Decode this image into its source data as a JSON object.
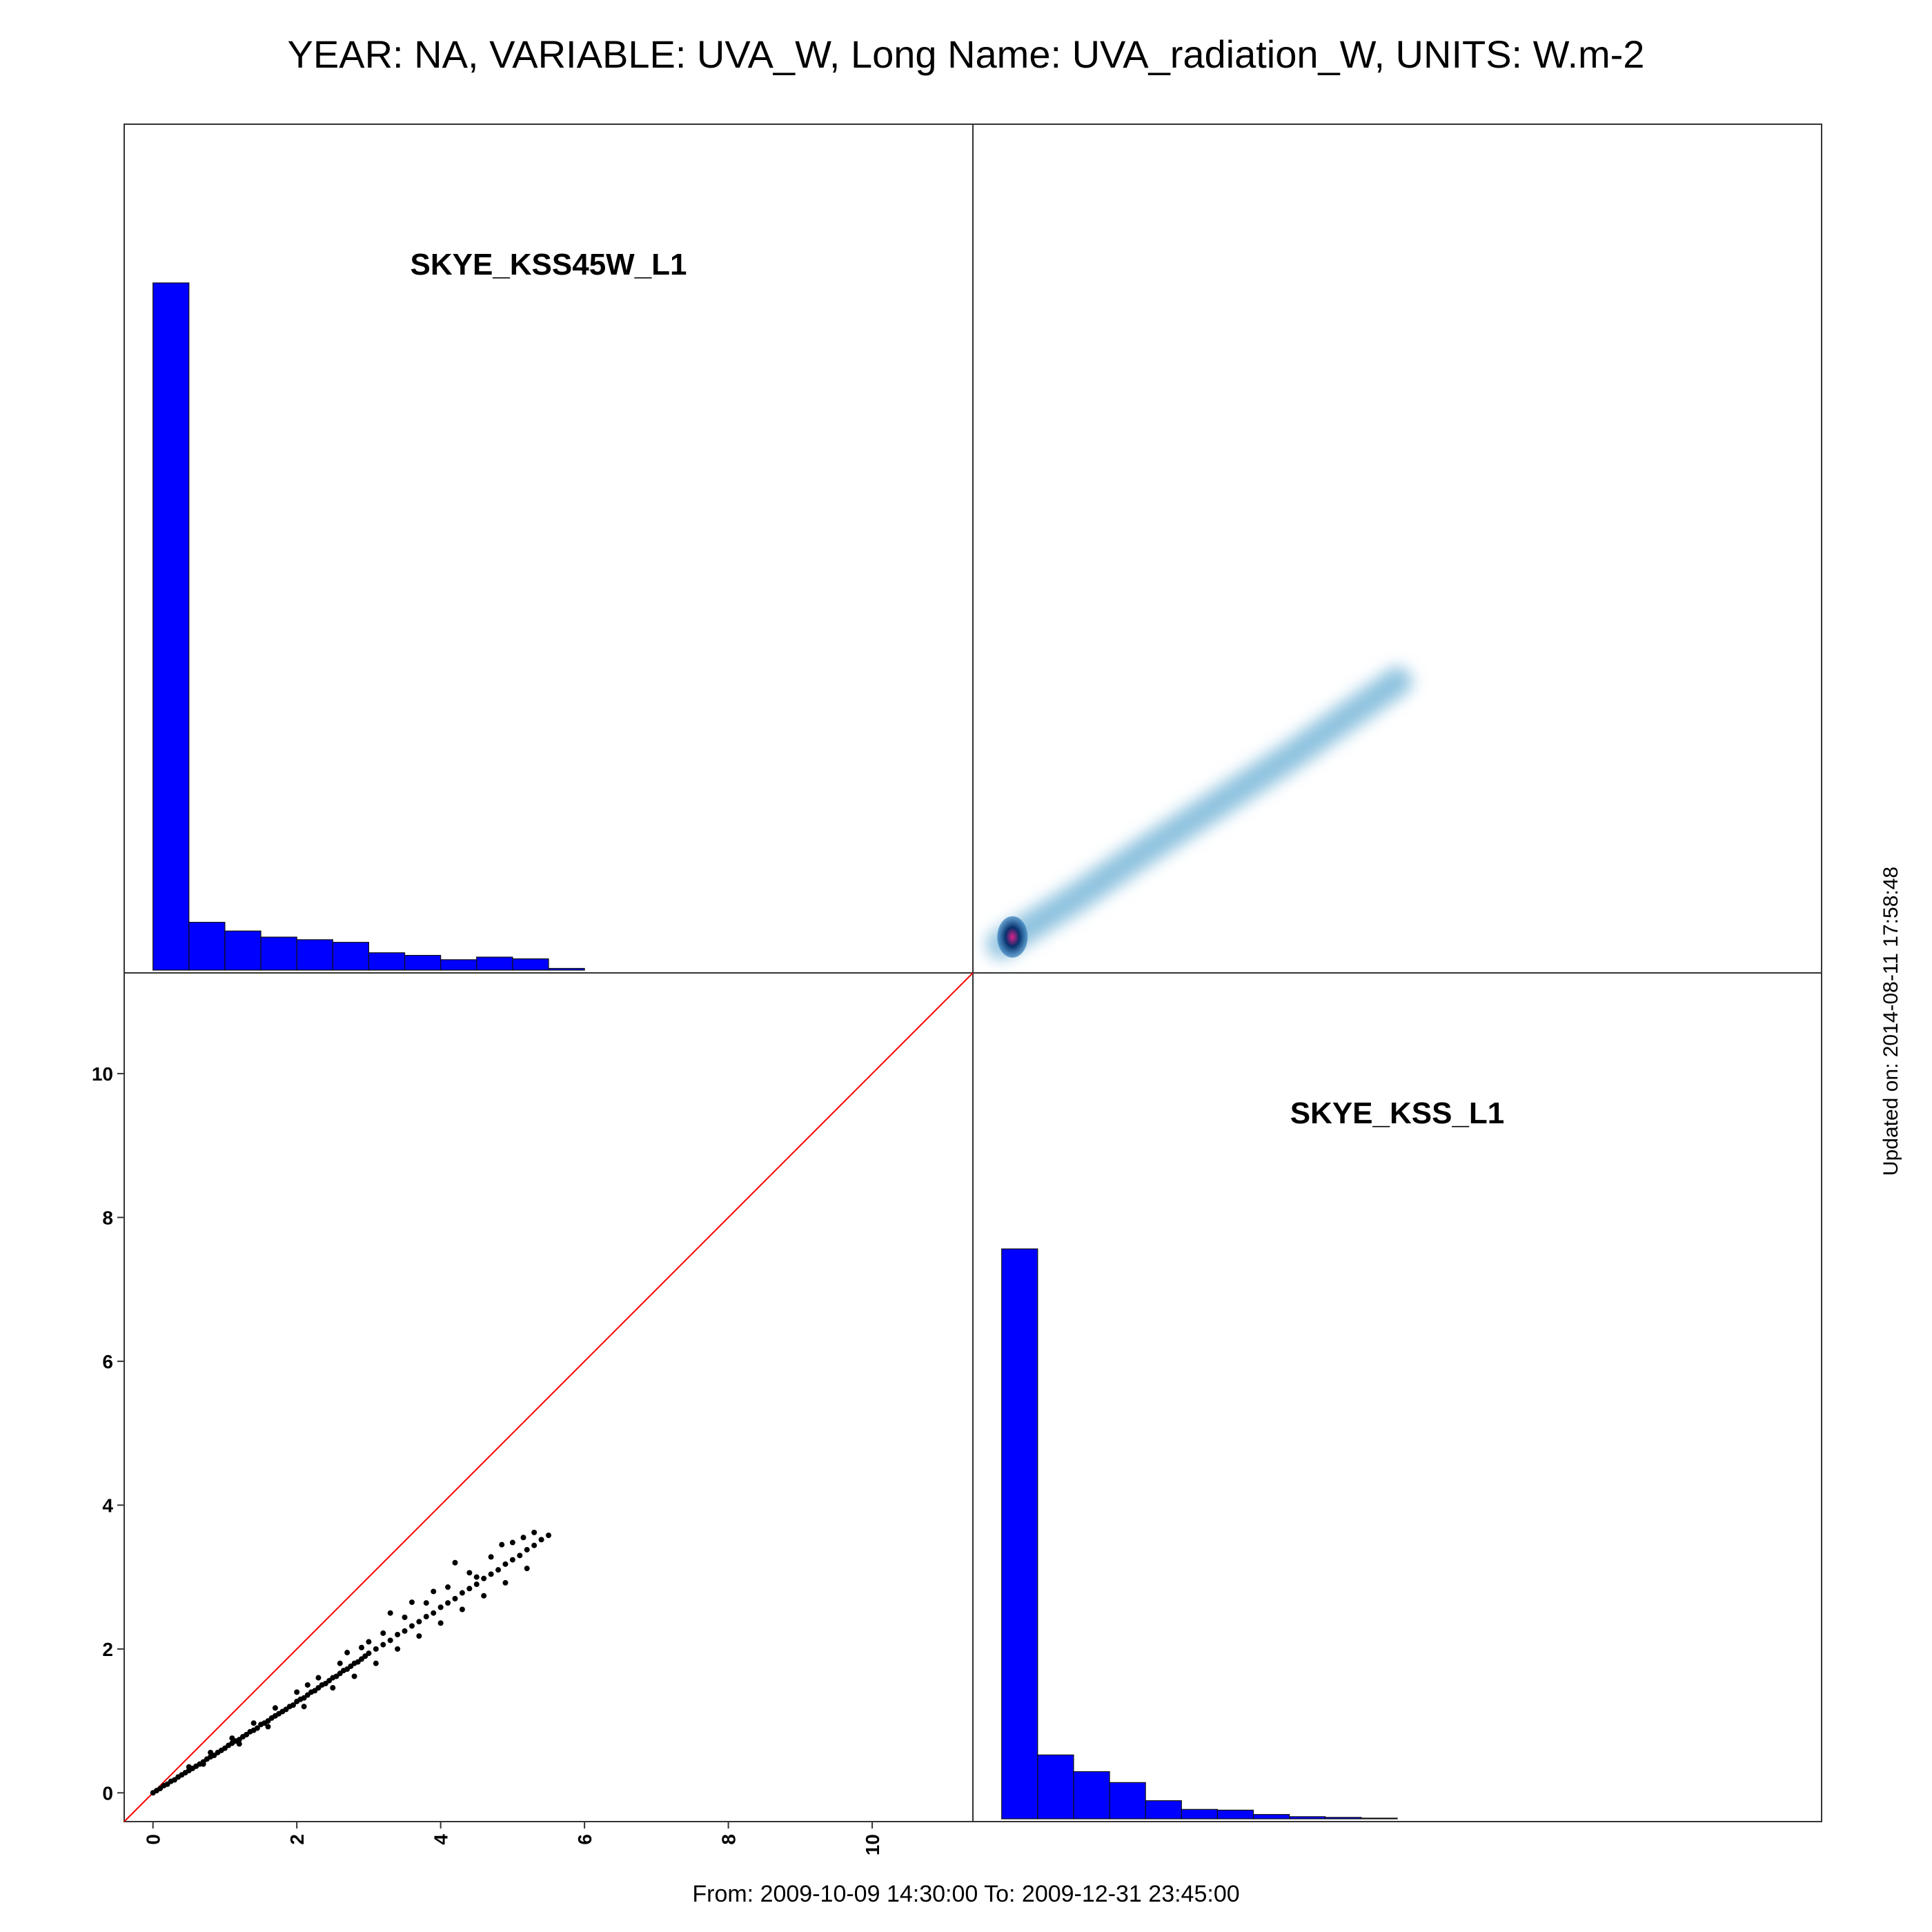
{
  "title": "YEAR: NA, VARIABLE: UVA_W, Long Name: UVA_radiation_W, UNITS: W.m-2",
  "footer": "From: 2009-10-09 14:30:00 To: 2009-12-31 23:45:00",
  "updated": "Updated on: 2014-08-11 17:58:48",
  "colors": {
    "hist": "#0000ff",
    "point": "#000000",
    "identity_line": "#ff0000",
    "density": "#6aaed6",
    "density_core": "#08306b"
  },
  "chart_data": [
    {
      "type": "bar",
      "panel": "top-left",
      "label": "SKYE_KSS45W_L1",
      "bin_edges": [
        0,
        0.5,
        1,
        1.5,
        2,
        2.5,
        3,
        3.5,
        4,
        4.5,
        5,
        5.5,
        6
      ],
      "values": [
        7.9,
        0.55,
        0.45,
        0.38,
        0.35,
        0.32,
        0.2,
        0.17,
        0.12,
        0.15,
        0.13,
        0.02
      ]
    },
    {
      "type": "heatmap",
      "panel": "top-right",
      "description_source": "smoothed 2D density of SKYE_KSS45W_L1 vs SKYE_KSS_L1",
      "ridge": [
        [
          0,
          0
        ],
        [
          1,
          0.62
        ],
        [
          2,
          1.3
        ],
        [
          3,
          1.95
        ],
        [
          4,
          2.6
        ],
        [
          5,
          3.3
        ],
        [
          5.5,
          3.65
        ]
      ],
      "peak": [
        0.15,
        0.1
      ]
    },
    {
      "type": "scatter",
      "panel": "bottom-left",
      "xlim": [
        -0.4,
        11.4
      ],
      "ylim": [
        -0.4,
        11.4
      ],
      "x_ticks": [
        "0",
        "2",
        "4",
        "6",
        "8",
        "10"
      ],
      "y_ticks": [
        "0",
        "2",
        "4",
        "6",
        "8",
        "10"
      ],
      "reference_line": "y = x",
      "points": [
        [
          0.0,
          0.0
        ],
        [
          0.05,
          0.03
        ],
        [
          0.1,
          0.06
        ],
        [
          0.15,
          0.1
        ],
        [
          0.2,
          0.12
        ],
        [
          0.25,
          0.16
        ],
        [
          0.3,
          0.18
        ],
        [
          0.35,
          0.22
        ],
        [
          0.4,
          0.25
        ],
        [
          0.45,
          0.28
        ],
        [
          0.5,
          0.31
        ],
        [
          0.55,
          0.34
        ],
        [
          0.6,
          0.37
        ],
        [
          0.65,
          0.4
        ],
        [
          0.7,
          0.43
        ],
        [
          0.75,
          0.47
        ],
        [
          0.8,
          0.5
        ],
        [
          0.85,
          0.52
        ],
        [
          0.9,
          0.56
        ],
        [
          0.95,
          0.59
        ],
        [
          1.0,
          0.62
        ],
        [
          1.05,
          0.66
        ],
        [
          1.1,
          0.69
        ],
        [
          1.15,
          0.72
        ],
        [
          1.2,
          0.74
        ],
        [
          1.25,
          0.78
        ],
        [
          1.3,
          0.81
        ],
        [
          1.35,
          0.85
        ],
        [
          1.4,
          0.87
        ],
        [
          1.45,
          0.9
        ],
        [
          1.5,
          0.95
        ],
        [
          1.55,
          0.97
        ],
        [
          1.6,
          1.0
        ],
        [
          1.65,
          1.04
        ],
        [
          1.7,
          1.07
        ],
        [
          1.75,
          1.1
        ],
        [
          1.8,
          1.13
        ],
        [
          1.85,
          1.16
        ],
        [
          1.9,
          1.2
        ],
        [
          1.95,
          1.22
        ],
        [
          2.0,
          1.27
        ],
        [
          2.05,
          1.3
        ],
        [
          2.1,
          1.32
        ],
        [
          2.15,
          1.36
        ],
        [
          2.2,
          1.4
        ],
        [
          2.25,
          1.42
        ],
        [
          2.3,
          1.46
        ],
        [
          2.35,
          1.5
        ],
        [
          2.4,
          1.52
        ],
        [
          2.45,
          1.56
        ],
        [
          2.5,
          1.6
        ],
        [
          2.55,
          1.62
        ],
        [
          2.6,
          1.66
        ],
        [
          2.65,
          1.7
        ],
        [
          2.7,
          1.72
        ],
        [
          2.75,
          1.76
        ],
        [
          2.8,
          1.8
        ],
        [
          2.85,
          1.82
        ],
        [
          2.9,
          1.86
        ],
        [
          2.95,
          1.9
        ],
        [
          3.0,
          1.94
        ],
        [
          3.1,
          2.0
        ],
        [
          3.2,
          2.06
        ],
        [
          3.3,
          2.12
        ],
        [
          3.4,
          2.2
        ],
        [
          3.5,
          2.25
        ],
        [
          3.6,
          2.32
        ],
        [
          3.7,
          2.38
        ],
        [
          3.8,
          2.45
        ],
        [
          3.9,
          2.5
        ],
        [
          4.0,
          2.58
        ],
        [
          4.1,
          2.64
        ],
        [
          4.2,
          2.7
        ],
        [
          4.3,
          2.78
        ],
        [
          4.4,
          2.84
        ],
        [
          4.5,
          2.9
        ],
        [
          4.6,
          2.98
        ],
        [
          4.7,
          3.04
        ],
        [
          4.8,
          3.1
        ],
        [
          4.9,
          3.18
        ],
        [
          5.0,
          3.24
        ],
        [
          5.1,
          3.3
        ],
        [
          5.2,
          3.38
        ],
        [
          5.3,
          3.44
        ],
        [
          5.4,
          3.52
        ],
        [
          5.5,
          3.58
        ],
        [
          0.5,
          0.36
        ],
        [
          0.8,
          0.56
        ],
        [
          1.1,
          0.76
        ],
        [
          1.4,
          0.97
        ],
        [
          1.7,
          1.18
        ],
        [
          2.0,
          1.4
        ],
        [
          2.3,
          1.6
        ],
        [
          2.6,
          1.8
        ],
        [
          2.9,
          2.02
        ],
        [
          3.2,
          2.22
        ],
        [
          3.5,
          2.44
        ],
        [
          3.8,
          2.64
        ],
        [
          4.1,
          2.86
        ],
        [
          4.4,
          3.06
        ],
        [
          4.7,
          3.28
        ],
        [
          5.0,
          3.48
        ],
        [
          5.3,
          3.62
        ],
        [
          0.7,
          0.4
        ],
        [
          1.2,
          0.68
        ],
        [
          1.6,
          0.92
        ],
        [
          2.1,
          1.2
        ],
        [
          2.5,
          1.46
        ],
        [
          2.8,
          1.62
        ],
        [
          3.1,
          1.8
        ],
        [
          3.4,
          2.0
        ],
        [
          3.7,
          2.18
        ],
        [
          4.0,
          2.36
        ],
        [
          4.3,
          2.55
        ],
        [
          4.6,
          2.74
        ],
        [
          4.9,
          2.92
        ],
        [
          5.2,
          3.12
        ],
        [
          3.3,
          2.5
        ],
        [
          3.6,
          2.65
        ],
        [
          3.9,
          2.8
        ],
        [
          4.2,
          3.2
        ],
        [
          4.5,
          3.0
        ],
        [
          4.85,
          3.45
        ],
        [
          5.15,
          3.55
        ],
        [
          2.15,
          1.5
        ],
        [
          2.7,
          1.95
        ],
        [
          3.0,
          2.1
        ]
      ]
    },
    {
      "type": "bar",
      "panel": "bottom-right",
      "label": "SKYE_KSS_L1",
      "bin_edges": [
        0,
        0.5,
        1,
        1.5,
        2,
        2.5,
        3,
        3.5,
        4,
        4.5,
        5,
        5.5
      ],
      "values": [
        7.85,
        0.88,
        0.65,
        0.5,
        0.25,
        0.13,
        0.12,
        0.06,
        0.03,
        0.02,
        0.01
      ]
    }
  ]
}
